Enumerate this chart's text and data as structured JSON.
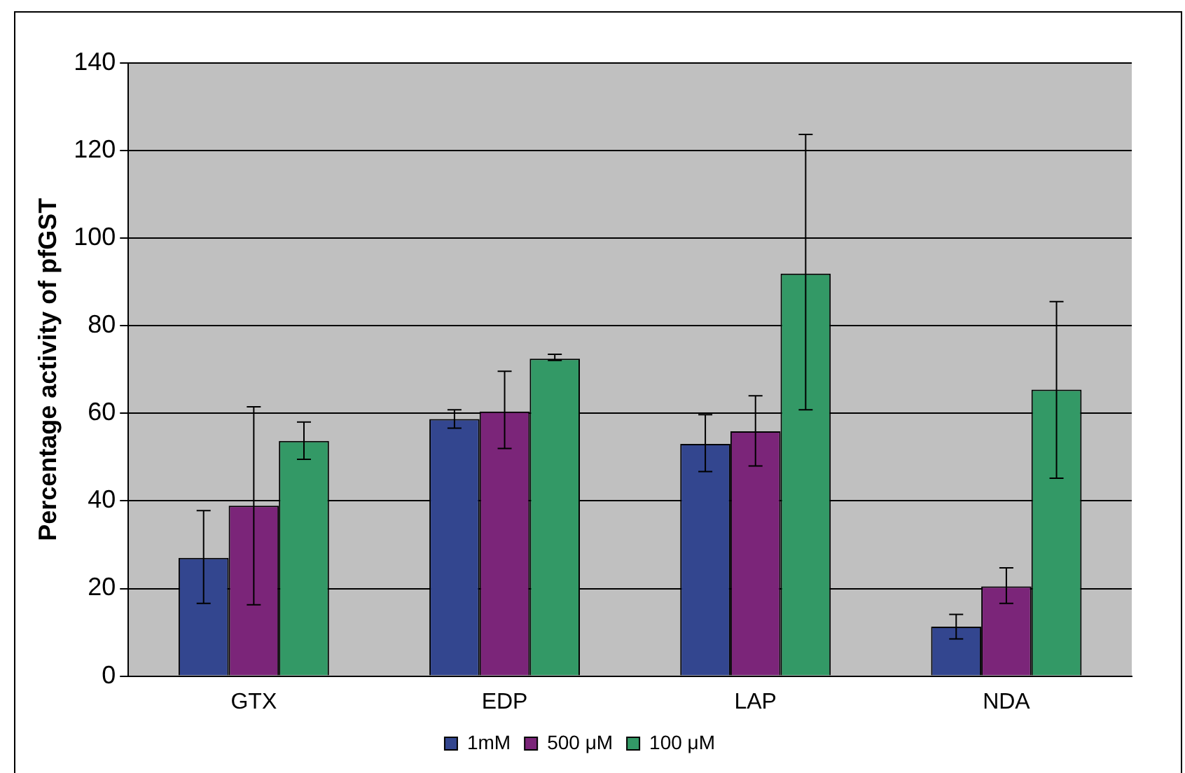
{
  "chart_data": {
    "type": "bar",
    "ylabel": "Percentage activity of pfGST",
    "categories": [
      "GTX",
      "EDP",
      "LAP",
      "NDA"
    ],
    "series": [
      {
        "name": "1mM",
        "color": "#33468f",
        "values": [
          27,
          58.7,
          53,
          11.3
        ],
        "errors": [
          [
            16.6,
            37.8
          ],
          [
            56.6,
            60.8
          ],
          [
            46.7,
            59.7
          ],
          [
            8.5,
            14.1
          ]
        ]
      },
      {
        "name": "500 μM",
        "color": "#7b2579",
        "values": [
          38.9,
          60.4,
          55.9,
          20.5
        ],
        "errors": [
          [
            16.3,
            61.5
          ],
          [
            52,
            69.6
          ],
          [
            48,
            64
          ],
          [
            16.6,
            24.7
          ]
        ]
      },
      {
        "name": "100 μM",
        "color": "#339966",
        "values": [
          53.7,
          72.5,
          91.9,
          65.4
        ],
        "errors": [
          [
            49.5,
            58
          ],
          [
            72.1,
            73.5
          ],
          [
            60.8,
            123.7
          ],
          [
            45.2,
            85.5
          ]
        ]
      }
    ],
    "ylim": [
      0,
      140
    ],
    "yticks": [
      0,
      20,
      40,
      60,
      80,
      100,
      120,
      140
    ],
    "grid": "y",
    "legend": "bottom"
  }
}
